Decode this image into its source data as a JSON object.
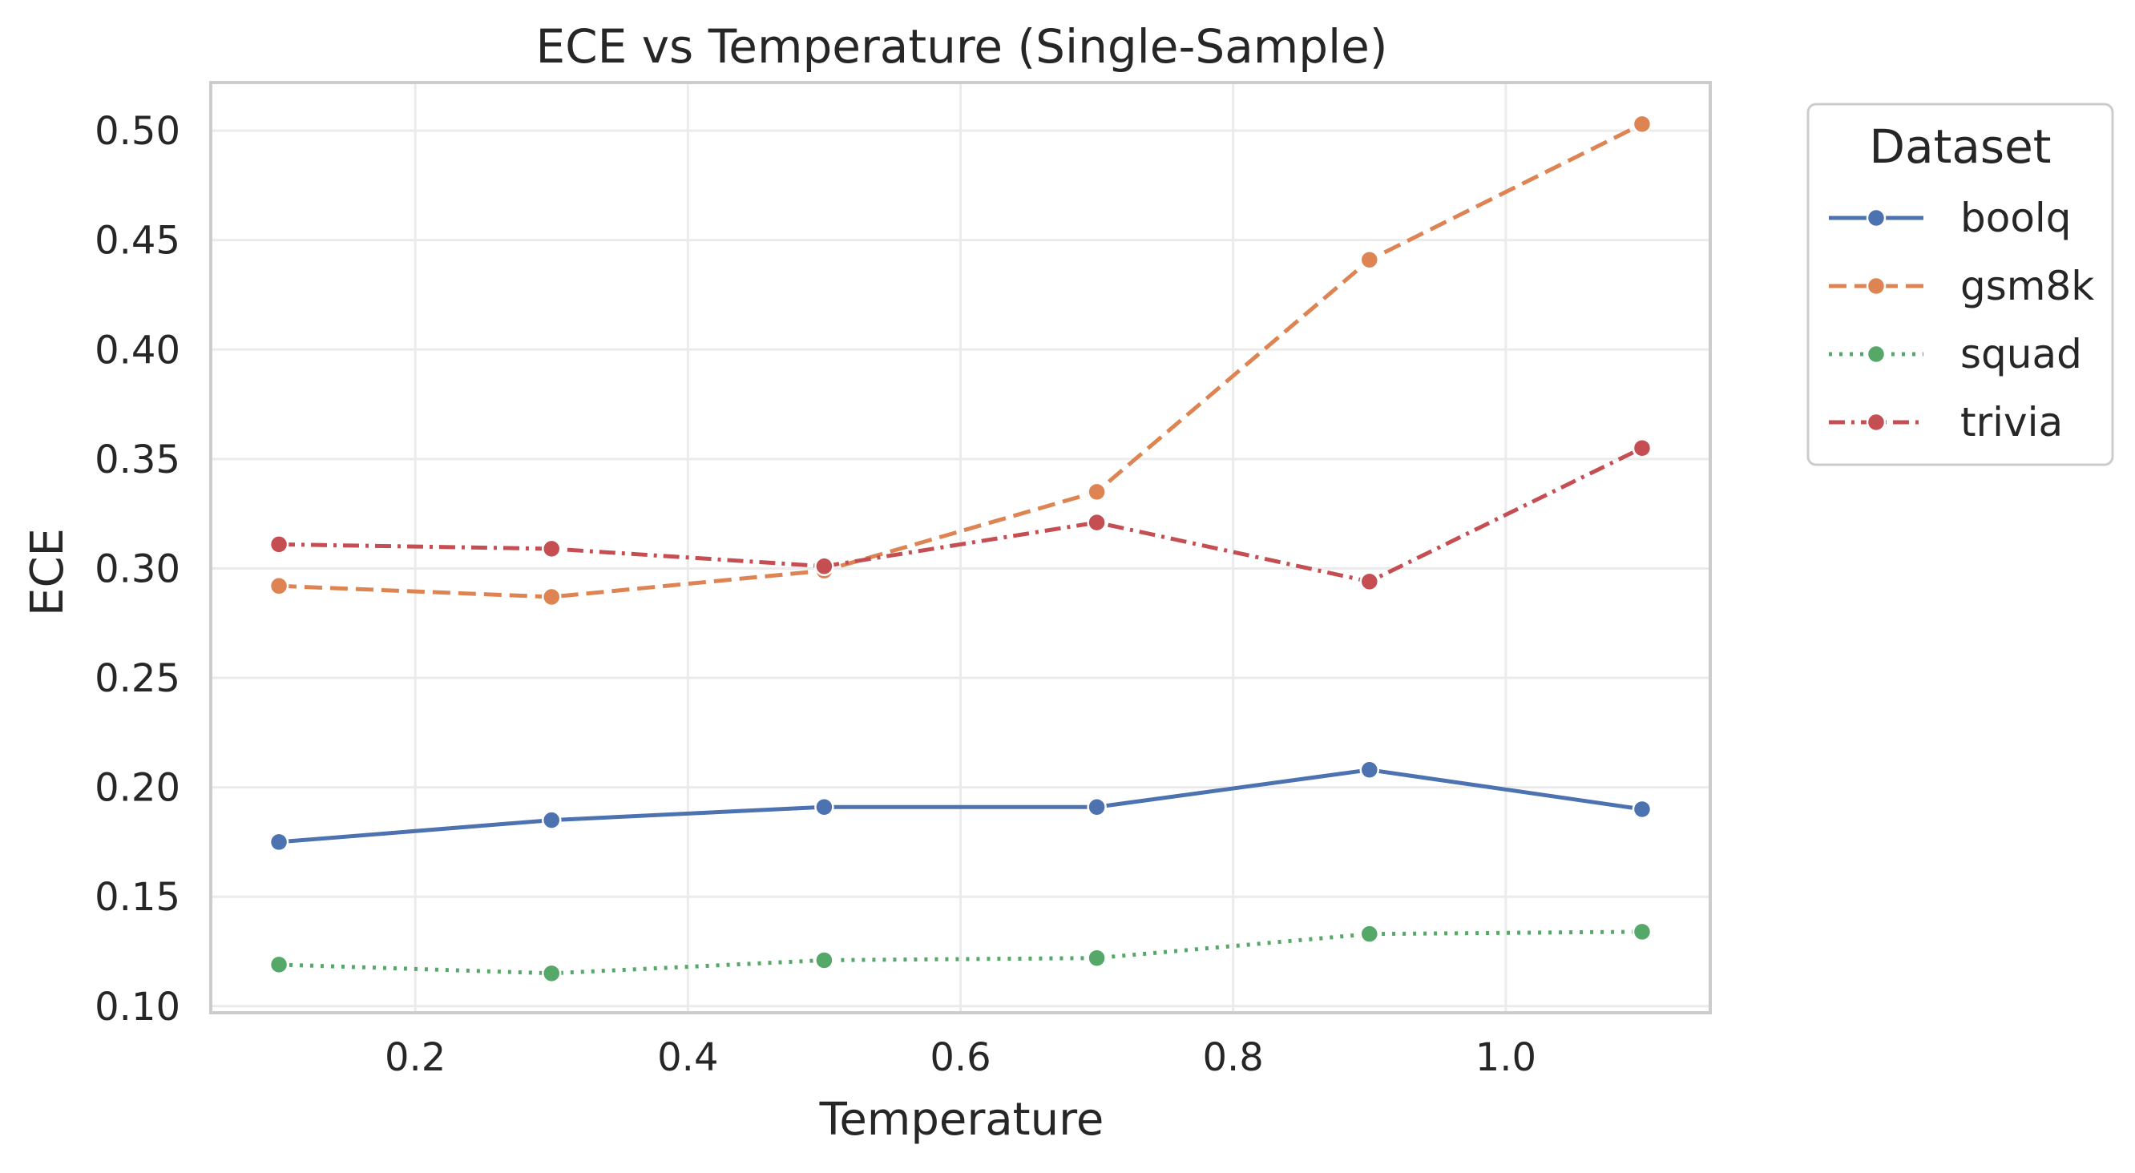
{
  "chart_data": {
    "type": "line",
    "title": "ECE vs Temperature (Single-Sample)",
    "xlabel": "Temperature",
    "ylabel": "ECE",
    "xlim": [
      0.05,
      1.15
    ],
    "ylim": [
      0.097,
      0.522
    ],
    "xticks": [
      0.2,
      0.4,
      0.6,
      0.8,
      1.0
    ],
    "xtick_labels": [
      "0.2",
      "0.4",
      "0.6",
      "0.8",
      "1.0"
    ],
    "yticks": [
      0.1,
      0.15,
      0.2,
      0.25,
      0.3,
      0.35,
      0.4,
      0.45,
      0.5
    ],
    "ytick_labels": [
      "0.10",
      "0.15",
      "0.20",
      "0.25",
      "0.30",
      "0.35",
      "0.40",
      "0.45",
      "0.50"
    ],
    "grid": true,
    "legend": {
      "title": "Dataset",
      "placement": "outside-right-top"
    },
    "x": [
      0.1,
      0.3,
      0.5,
      0.7,
      0.9,
      1.1
    ],
    "series": [
      {
        "name": "boolq",
        "color": "#4c72b0",
        "dash": "solid",
        "values": [
          0.175,
          0.185,
          0.191,
          0.191,
          0.208,
          0.19
        ]
      },
      {
        "name": "gsm8k",
        "color": "#dd8452",
        "dash": "dashed",
        "values": [
          0.292,
          0.287,
          0.299,
          0.335,
          0.441,
          0.503
        ]
      },
      {
        "name": "squad",
        "color": "#55a868",
        "dash": "dotted",
        "values": [
          0.119,
          0.115,
          0.121,
          0.122,
          0.133,
          0.134
        ]
      },
      {
        "name": "trivia",
        "color": "#c44e52",
        "dash": "dashdot",
        "values": [
          0.311,
          0.309,
          0.301,
          0.321,
          0.294,
          0.355
        ]
      }
    ]
  }
}
